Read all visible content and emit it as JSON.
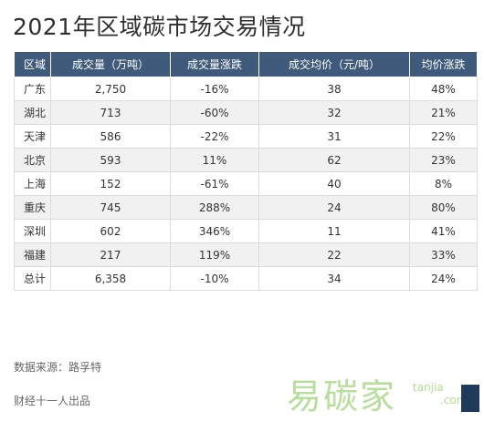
{
  "title": "2021年区域碳市场交易情况",
  "table": {
    "headers": [
      "区域",
      "成交量（万吨）",
      "成交量涨跌",
      "成交均价（元/吨）",
      "均价涨跌"
    ],
    "rows": [
      [
        "广东",
        "2,750",
        "-16%",
        "38",
        "48%"
      ],
      [
        "湖北",
        "713",
        "-60%",
        "32",
        "21%"
      ],
      [
        "天津",
        "586",
        "-22%",
        "31",
        "22%"
      ],
      [
        "北京",
        "593",
        "11%",
        "62",
        "23%"
      ],
      [
        "上海",
        "152",
        "-61%",
        "40",
        "8%"
      ],
      [
        "重庆",
        "745",
        "288%",
        "24",
        "80%"
      ],
      [
        "深圳",
        "602",
        "346%",
        "11",
        "41%"
      ],
      [
        "福建",
        "217",
        "119%",
        "22",
        "33%"
      ],
      [
        "总计",
        "6,358",
        "-10%",
        "34",
        "24%"
      ]
    ]
  },
  "source": "数据来源：路孚特",
  "credit": "财经十一人出品",
  "watermark": {
    "text": "易碳家",
    "domain_line1": "tanjia",
    "domain_line2": ".com"
  },
  "colors": {
    "header_bg": "#3f5a7a",
    "watermark": "#9fd37a"
  }
}
